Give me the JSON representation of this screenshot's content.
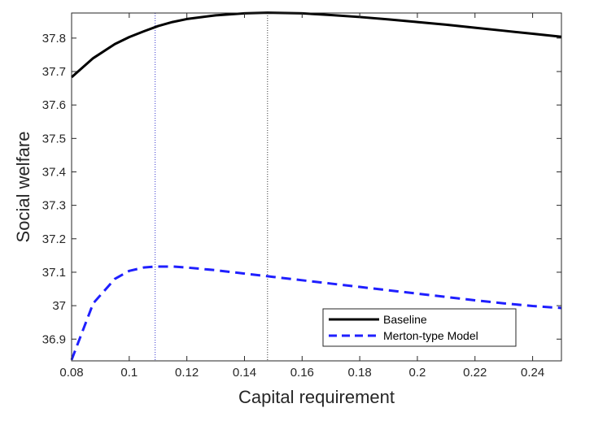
{
  "chart_data": {
    "type": "line",
    "xlabel": "Capital requirement",
    "ylabel": "Social welfare",
    "xlim": [
      0.08,
      0.25
    ],
    "ylim": [
      36.835,
      37.875
    ],
    "x_ticks": [
      0.08,
      0.1,
      0.12,
      0.14,
      0.16,
      0.18,
      0.2,
      0.22,
      0.24
    ],
    "x_tick_labels": [
      "0.08",
      "0.1",
      "0.12",
      "0.14",
      "0.16",
      "0.18",
      "0.2",
      "0.22",
      "0.24"
    ],
    "y_ticks": [
      36.9,
      37.0,
      37.1,
      37.2,
      37.3,
      37.4,
      37.5,
      37.6,
      37.7,
      37.8
    ],
    "y_tick_labels": [
      "36.9",
      "37",
      "37.1",
      "37.2",
      "37.3",
      "37.4",
      "37.5",
      "37.6",
      "37.7",
      "37.8"
    ],
    "grid": false,
    "legend_position": "bottom-right",
    "vertical_lines": [
      {
        "x": 0.109,
        "color": "#3333cc",
        "style": "dotted"
      },
      {
        "x": 0.148,
        "color": "#333333",
        "style": "dotted"
      }
    ],
    "series": [
      {
        "name": "Baseline",
        "color": "#000000",
        "style": "solid",
        "x": [
          0.08,
          0.0875,
          0.095,
          0.1,
          0.105,
          0.11,
          0.115,
          0.12,
          0.13,
          0.14,
          0.148,
          0.16,
          0.17,
          0.18,
          0.19,
          0.2,
          0.21,
          0.22,
          0.23,
          0.24,
          0.25
        ],
        "y": [
          37.683,
          37.74,
          37.782,
          37.803,
          37.82,
          37.836,
          37.848,
          37.857,
          37.868,
          37.874,
          37.876,
          37.874,
          37.869,
          37.863,
          37.856,
          37.848,
          37.84,
          37.831,
          37.822,
          37.813,
          37.804
        ]
      },
      {
        "name": "Merton-type Model",
        "color": "#1f1fff",
        "style": "dashed",
        "x": [
          0.08,
          0.0875,
          0.095,
          0.1,
          0.105,
          0.109,
          0.115,
          0.12,
          0.13,
          0.14,
          0.15,
          0.16,
          0.17,
          0.18,
          0.19,
          0.2,
          0.21,
          0.22,
          0.23,
          0.24,
          0.25
        ],
        "y": [
          36.838,
          37.007,
          37.08,
          37.104,
          37.114,
          37.117,
          37.117,
          37.114,
          37.106,
          37.096,
          37.086,
          37.076,
          37.066,
          37.056,
          37.046,
          37.036,
          37.026,
          37.016,
          37.007,
          36.999,
          36.993
        ]
      }
    ]
  }
}
